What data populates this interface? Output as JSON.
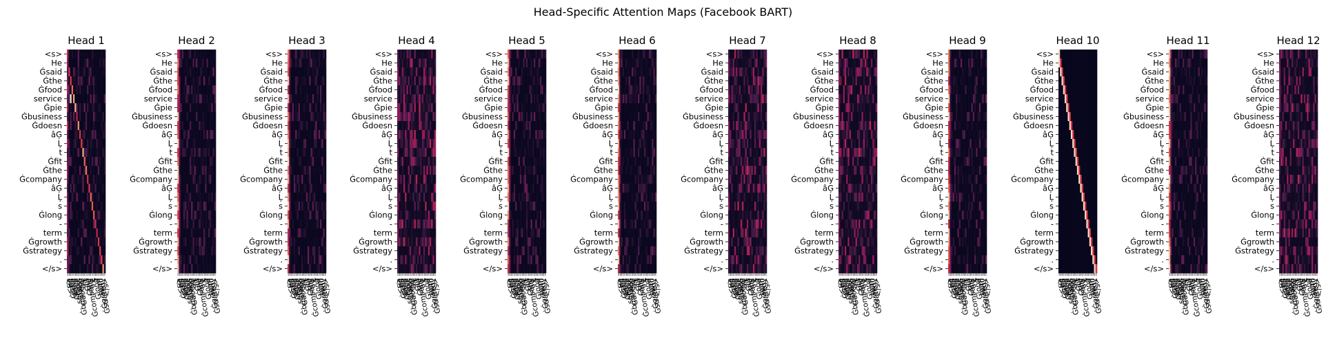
{
  "chart_data": {
    "type": "heatmap",
    "title": "Head-Specific Attention Maps (Facebook BART)",
    "subplot_titles": [
      "Head 1",
      "Head 2",
      "Head 3",
      "Head 4",
      "Head 5",
      "Head 6",
      "Head 7",
      "Head 8",
      "Head 9",
      "Head 10",
      "Head 11",
      "Head 12"
    ],
    "tokens": [
      "<s>",
      "He",
      "Ġsaid",
      "Ġthe",
      "Ġfood",
      "service",
      "Ġpie",
      "Ġbusiness",
      "Ġdoesn",
      "âĢ",
      "Ļ",
      "t",
      "Ġfit",
      "Ġthe",
      "Ġcompany",
      "âĢ",
      "Ļ",
      "s",
      "Ġlong",
      "-",
      "term",
      "Ġgrowth",
      "Ġstrategy",
      ".",
      "</s>"
    ],
    "colormap": [
      "#03051a",
      "#4c1d4b",
      "#a11a5b",
      "#e83f3f",
      "#f69c73",
      "#faebdd"
    ],
    "value_range": [
      0,
      1
    ],
    "patterns": [
      "diagonal",
      "first-column",
      "first-column",
      "diffuse",
      "first-column",
      "first-column",
      "diffuse",
      "diffuse",
      "first-column",
      "strict-diagonal",
      "first-column",
      "diffuse"
    ]
  }
}
